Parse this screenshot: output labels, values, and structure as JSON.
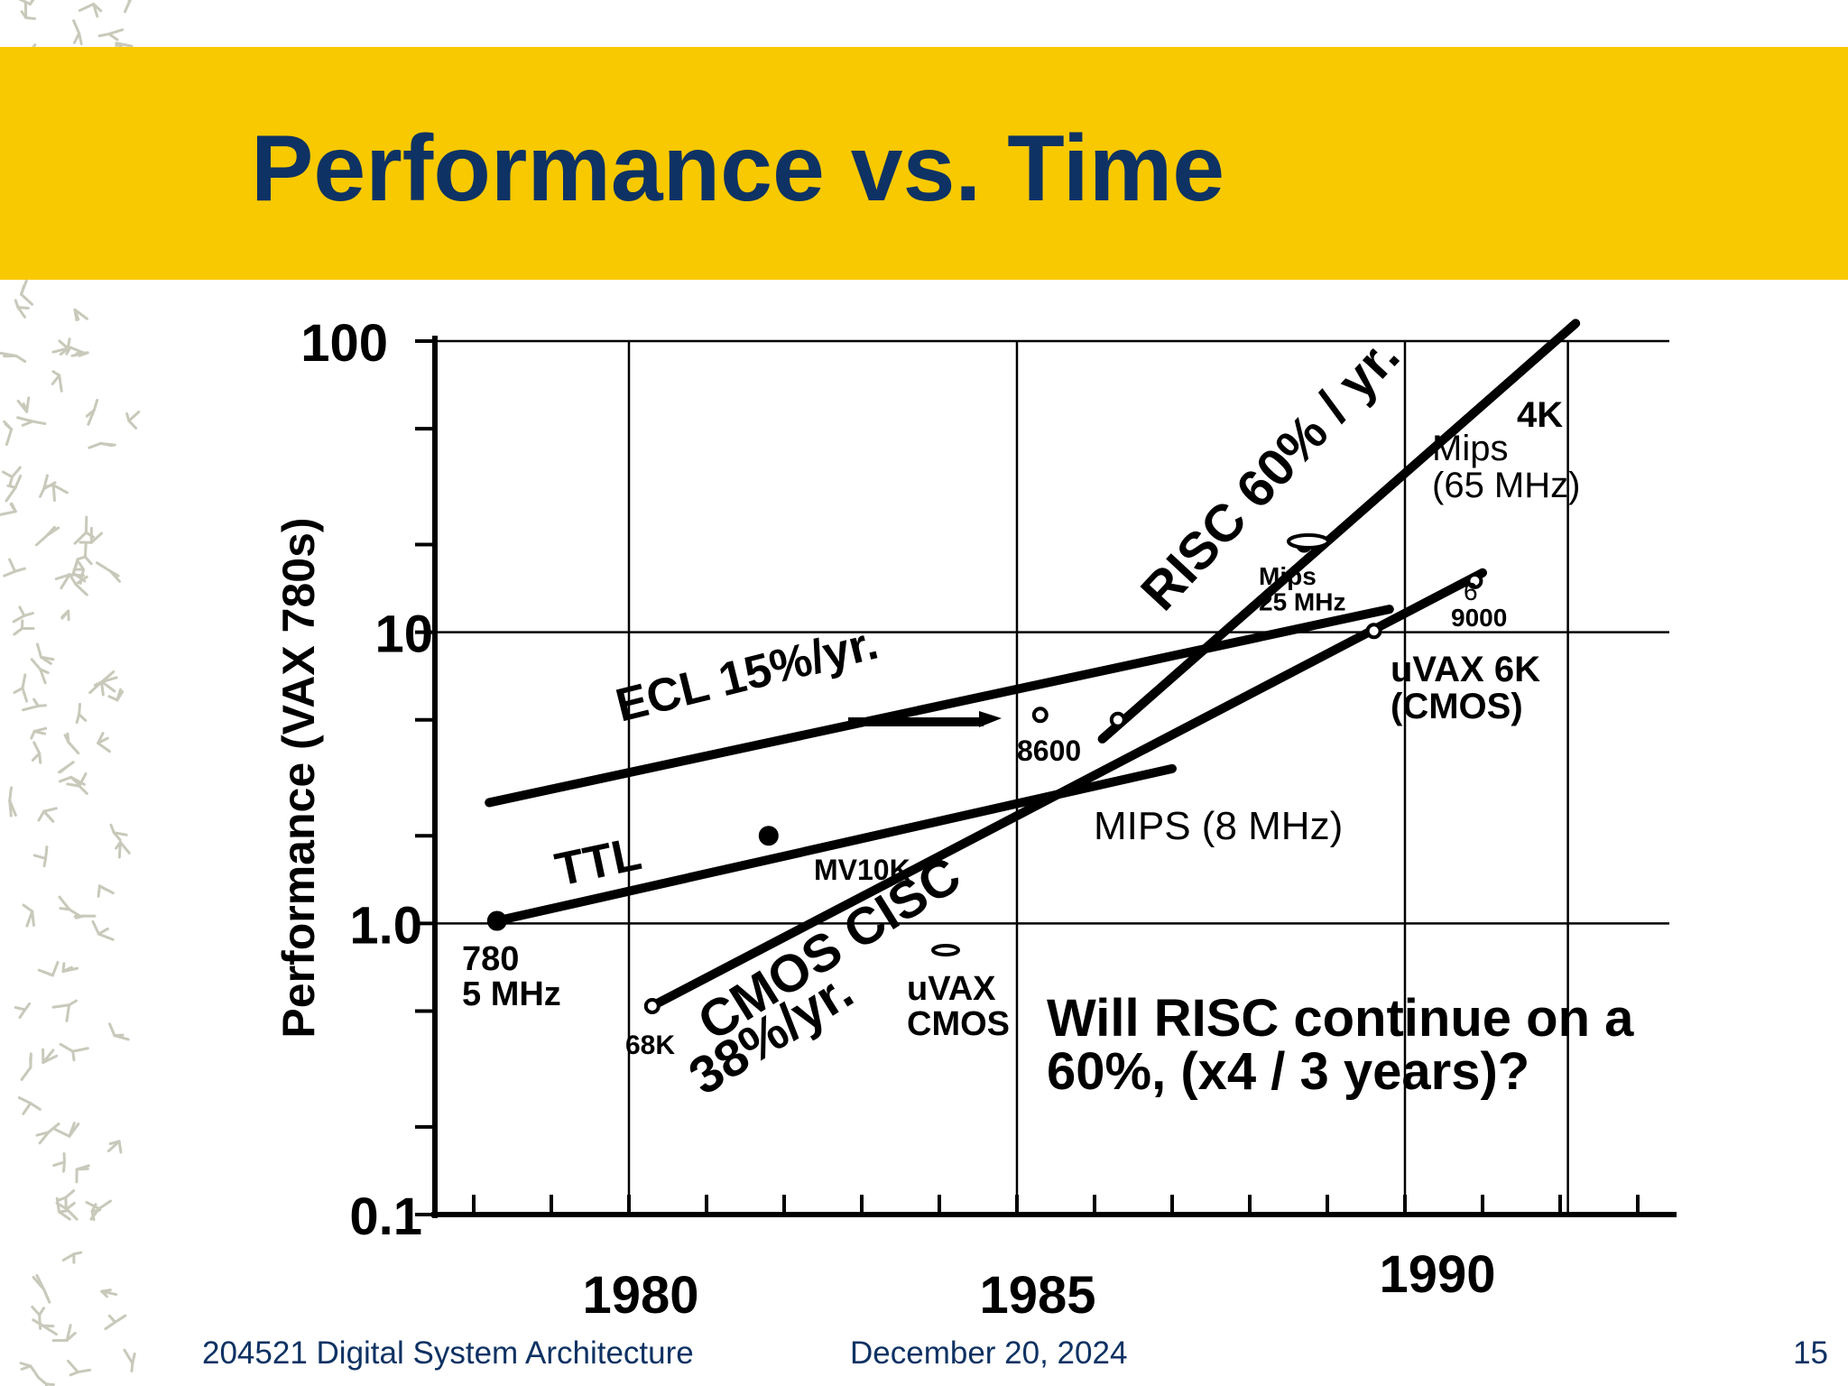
{
  "slide": {
    "title": "Performance vs. Time",
    "footer_course": "204521 Digital System Architecture",
    "footer_date": "December 20, 2024",
    "page_number": "15"
  },
  "colors": {
    "band": "#f9c900",
    "title": "#0e3263",
    "ink": "#000000",
    "deco": "#c9c9bb"
  },
  "chart_data": {
    "type": "line",
    "ylabel": "Performance (VAX 780s)",
    "xlabel": "",
    "y_scale": "log",
    "ylim": [
      0.1,
      100
    ],
    "xlim": [
      1977.5,
      1993.5
    ],
    "grid": true,
    "x_ticks": [
      "1980",
      "1985",
      "1990"
    ],
    "y_ticks": [
      "0.1",
      "1.0",
      "10",
      "100"
    ],
    "series": [
      {
        "name": "ECL 15%/yr.",
        "x": [
          1978.2,
          1989.8
        ],
        "y": [
          2.6,
          12.0
        ]
      },
      {
        "name": "TTL",
        "x": [
          1978.3,
          1987.0
        ],
        "y": [
          1.02,
          3.4
        ]
      },
      {
        "name": "CMOS CISC 38%/yr.",
        "x": [
          1980.3,
          1991.0
        ],
        "y": [
          0.52,
          16.0
        ]
      },
      {
        "name": "RISC 60% / yr.",
        "x": [
          1986.1,
          1992.2
        ],
        "y": [
          4.3,
          115
        ]
      }
    ],
    "points": [
      {
        "label": "780\n5 MHz",
        "x": 1978.3,
        "y": 1.02
      },
      {
        "label": "MV10K",
        "x": 1981.8,
        "y": 2.0
      },
      {
        "label": "68K",
        "x": 1980.3,
        "y": 0.52
      },
      {
        "label": "8600",
        "x": 1985.3,
        "y": 5.2
      },
      {
        "label": "MIPS (8 MHz)",
        "x": 1986.3,
        "y": 5.0
      },
      {
        "label": "Mips\n25 MHz",
        "x": 1988.7,
        "y": 20
      },
      {
        "label": "uVAX 6K\n(CMOS)",
        "x": 1989.6,
        "y": 10.1
      },
      {
        "label": "9000",
        "x": 1990.9,
        "y": 15
      },
      {
        "label": "4K\nMips\n(65 MHz)",
        "x": 1991.0,
        "y": 55
      },
      {
        "label": "uVAX\nCMOS",
        "x": 1984.4,
        "y": 0.8
      }
    ],
    "annotation": "Will RISC continue on a\n60%, (x4 / 3 years)?"
  }
}
